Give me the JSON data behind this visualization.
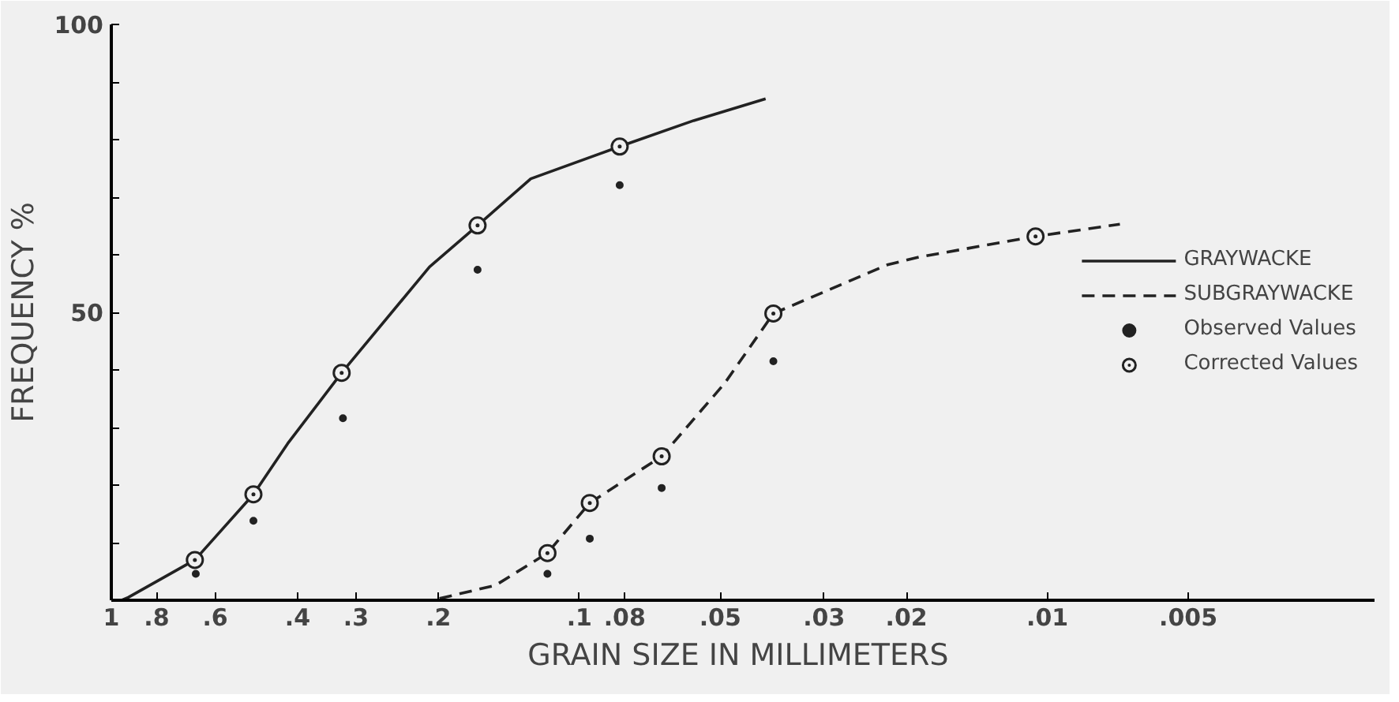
{
  "chart_data": {
    "type": "line",
    "xlabel": "GRAIN SIZE  IN MILLIMETERS",
    "ylabel": "FREQUENCY %",
    "log": "x",
    "grid": false,
    "legend": "right",
    "xlim": [
      1,
      0.002
    ],
    "ylim": [
      0,
      100
    ],
    "xticks": [
      {
        "value": 1,
        "label": "1"
      },
      {
        "value": 0.8,
        "label": ".8"
      },
      {
        "value": 0.6,
        "label": ".6"
      },
      {
        "value": 0.4,
        "label": ".4"
      },
      {
        "value": 0.3,
        "label": ".3"
      },
      {
        "value": 0.2,
        "label": ".2"
      },
      {
        "value": 0.1,
        "label": ".1"
      },
      {
        "value": 0.08,
        "label": ".08"
      },
      {
        "value": 0.05,
        "label": ".05"
      },
      {
        "value": 0.03,
        "label": ".03"
      },
      {
        "value": 0.02,
        "label": ".02"
      },
      {
        "value": 0.01,
        "label": ".01"
      },
      {
        "value": 0.005,
        "label": ".005"
      }
    ],
    "yticks": [
      {
        "value": 10,
        "label": null
      },
      {
        "value": 20,
        "label": null
      },
      {
        "value": 30,
        "label": null
      },
      {
        "value": 40,
        "label": null
      },
      50,
      {
        "value": 60,
        "label": null
      },
      {
        "value": 70,
        "label": null
      },
      {
        "value": 80,
        "label": null
      },
      {
        "value": 90,
        "label": null
      },
      100
    ],
    "series": [
      {
        "name": "GRAYWACKE",
        "line_style": "solid",
        "color": "#222222",
        "x": [
          0.95,
          0.92,
          0.663,
          0.497,
          0.42,
          0.322,
          0.209,
          0.165,
          0.127,
          0.082,
          0.057,
          0.04
        ],
        "values": [
          0,
          0.5,
          7.0,
          18.4,
          27.2,
          39.5,
          57.9,
          65.1,
          73.2,
          78.8,
          83.3,
          87.1
        ]
      },
      {
        "name": "SUBGRAYWACKE",
        "line_style": "dashed",
        "color": "#222222",
        "x": [
          0.199,
          0.151,
          0.117,
          0.095,
          0.0667,
          0.0489,
          0.0385,
          0.0219,
          0.0188,
          0.0106,
          0.007
        ],
        "values": [
          0.3,
          2.6,
          8.2,
          16.9,
          25.0,
          37.7,
          49.8,
          58.3,
          59.6,
          63.2,
          65.3
        ]
      },
      {
        "name": "Observed Values",
        "type": "scatter",
        "marker": "circle",
        "color": "#222222",
        "x": [
          0.66,
          0.497,
          0.32,
          0.165,
          0.082,
          0.117,
          0.095,
          0.0667,
          0.0385
        ],
        "values": [
          4.6,
          13.8,
          31.6,
          57.4,
          72.1,
          4.6,
          10.7,
          19.5,
          41.5
        ]
      },
      {
        "name": "Corrected Values",
        "type": "scatter",
        "marker": "circle_dot",
        "color": "#222222",
        "x": [
          0.663,
          0.497,
          0.322,
          0.165,
          0.082,
          0.117,
          0.095,
          0.0667,
          0.0385,
          0.0106
        ],
        "values": [
          7.0,
          18.4,
          39.5,
          65.1,
          78.8,
          8.2,
          16.9,
          25.0,
          49.8,
          63.2
        ]
      }
    ]
  }
}
